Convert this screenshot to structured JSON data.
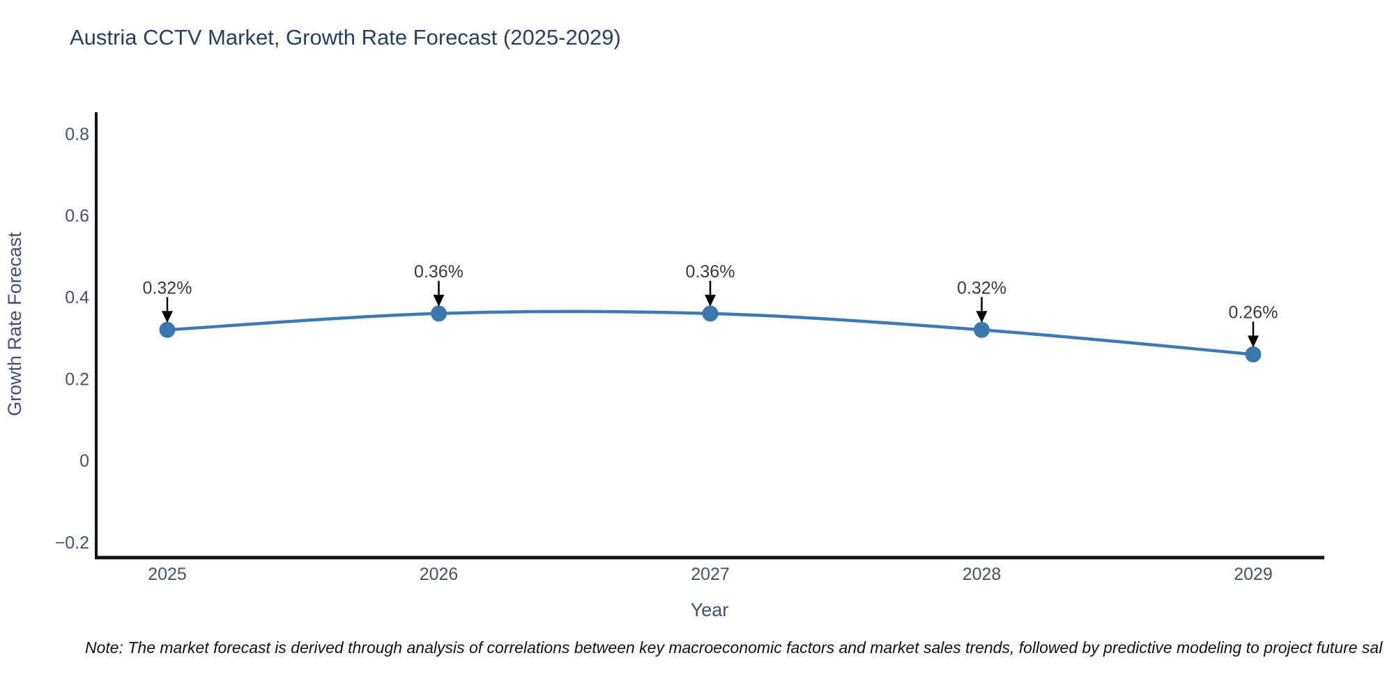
{
  "chart_data": {
    "type": "line",
    "title": "Austria CCTV Market, Growth Rate Forecast (2025-2029)",
    "xlabel": "Year",
    "ylabel": "Growth Rate Forecast",
    "x": [
      2025,
      2026,
      2027,
      2028,
      2029
    ],
    "xtick_labels": [
      "2025",
      "2026",
      "2027",
      "2028",
      "2029"
    ],
    "series": [
      {
        "name": "Growth Rate Forecast",
        "values": [
          0.32,
          0.36,
          0.36,
          0.32,
          0.26
        ]
      }
    ],
    "point_labels": [
      "0.32%",
      "0.36%",
      "0.36%",
      "0.32%",
      "0.26%"
    ],
    "ylim": [
      -0.24,
      0.85
    ],
    "yticks": [
      -0.2,
      0,
      0.2,
      0.4,
      0.6,
      0.8
    ],
    "ytick_labels": [
      "−0.2",
      "0",
      "0.2",
      "0.4",
      "0.6",
      "0.8"
    ],
    "grid": false,
    "legend": false,
    "line_shape": "spline",
    "line_color": "#3d7ab5",
    "marker_color": "#3a76b0",
    "annotation_arrow_color": "#000000"
  },
  "note": "Note: The market forecast is derived through analysis of correlations between key macroeconomic factors and market sales trends, followed by predictive modeling to project future sal",
  "colors": {
    "title_text": "#2a3f5f",
    "axis_text": "#42526e",
    "annotation_text": "#3a3a3a",
    "spine": "#131313",
    "background": "#ffffff"
  }
}
